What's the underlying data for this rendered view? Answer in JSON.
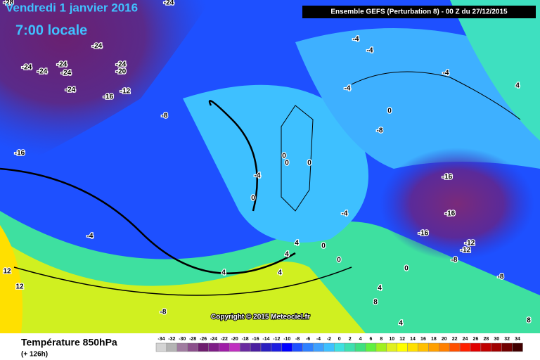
{
  "header": {
    "date": "Vendredi 1 janvier 2016",
    "time": "7:00 locale",
    "run": "Ensemble GEFS  (Perturbation 8)  -  00 Z du 27/12/2015"
  },
  "copyright": "Copyright © 2015 Meteociel.fr",
  "footer": {
    "title": "Température 850hPa",
    "lead": "(+ 126h)"
  },
  "scale": {
    "values": [
      -34,
      -32,
      -30,
      -28,
      -26,
      -24,
      -22,
      -20,
      -18,
      -16,
      -14,
      -12,
      -10,
      -8,
      -6,
      -4,
      -2,
      0,
      2,
      4,
      6,
      8,
      10,
      12,
      14,
      16,
      18,
      20,
      22,
      24,
      26,
      28,
      30,
      32,
      34
    ],
    "colors": [
      "#d4d4d4",
      "#b4b4b4",
      "#a07ca0",
      "#8c508c",
      "#6e1e6e",
      "#7e1e86",
      "#9e1ea6",
      "#c030c0",
      "#6a2aa0",
      "#4a1ea0",
      "#2a1ec0",
      "#1e1ee0",
      "#0000ff",
      "#1e50ff",
      "#2e80ff",
      "#3ea0ff",
      "#3ec0ff",
      "#3ee0e0",
      "#3ee0b0",
      "#3ee080",
      "#60f040",
      "#a0f020",
      "#e0f020",
      "#ffff00",
      "#ffe000",
      "#ffc000",
      "#ffa000",
      "#ff8000",
      "#ff5000",
      "#ff2000",
      "#e00000",
      "#c00000",
      "#a00000",
      "#700000",
      "#400000"
    ]
  },
  "map": {
    "contour_labels": [
      -28,
      -24,
      -24,
      -24,
      -24,
      -24,
      -24,
      -24,
      -20,
      -24,
      -16,
      -12,
      -8,
      -16,
      -4,
      -4,
      -4,
      -4,
      4,
      0,
      -8,
      0,
      0,
      0,
      -4,
      0,
      -16,
      -16,
      -4,
      -16,
      -12,
      -12,
      -4,
      4,
      0,
      4,
      0,
      -8,
      0,
      4,
      4,
      -8,
      12,
      12,
      4,
      8,
      -8,
      4,
      8
    ]
  }
}
